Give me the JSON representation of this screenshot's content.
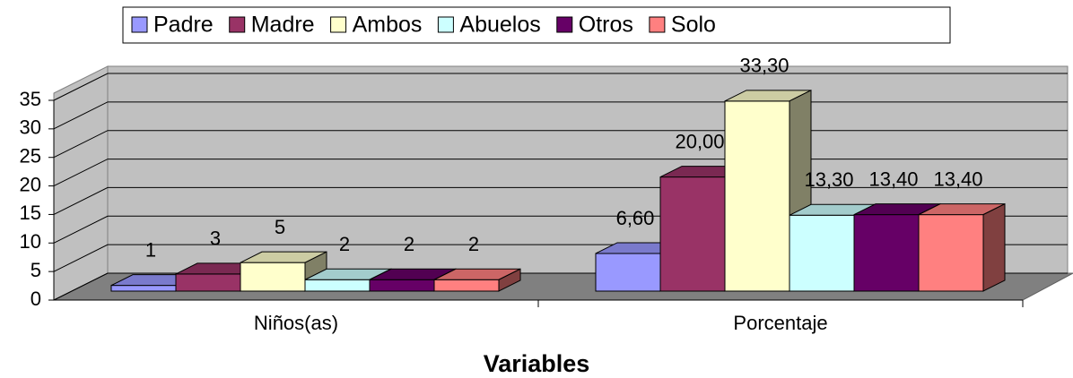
{
  "chart_data": {
    "type": "bar3d",
    "x_label": "Variables",
    "categories": [
      "Niños(as)",
      "Porcentaje"
    ],
    "series": [
      {
        "name": "Padre",
        "color": "#9999ff",
        "values": [
          1,
          6.6
        ],
        "value_labels": [
          "1",
          "6,60"
        ]
      },
      {
        "name": "Madre",
        "color": "#993366",
        "values": [
          3,
          20
        ],
        "value_labels": [
          "3",
          "20,00"
        ]
      },
      {
        "name": "Ambos",
        "color": "#ffffcc",
        "values": [
          5,
          33.3
        ],
        "value_labels": [
          "5",
          "33,30"
        ]
      },
      {
        "name": "Abuelos",
        "color": "#ccffff",
        "values": [
          2,
          13.3
        ],
        "value_labels": [
          "2",
          "13,30"
        ]
      },
      {
        "name": "Otros",
        "color": "#660066",
        "values": [
          2,
          13.4
        ],
        "value_labels": [
          "2",
          "13,40"
        ]
      },
      {
        "name": "Solo",
        "color": "#ff8080",
        "values": [
          2,
          13.4
        ],
        "value_labels": [
          "2",
          "13,40"
        ]
      }
    ],
    "ylim": [
      0,
      35
    ],
    "yticks": [
      0,
      5,
      10,
      15,
      20,
      25,
      30,
      35
    ],
    "grid": true,
    "legend": "top"
  }
}
